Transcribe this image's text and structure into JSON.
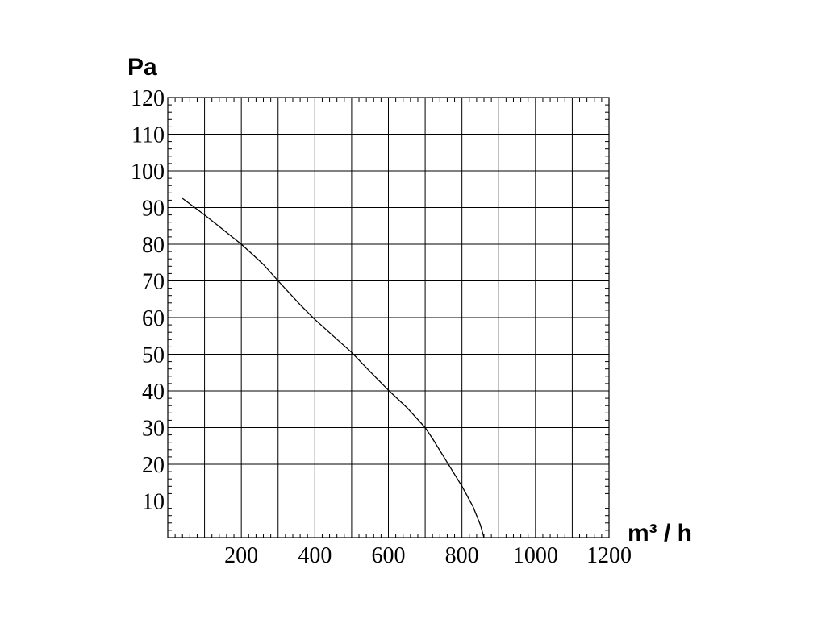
{
  "chart_data": {
    "type": "line",
    "title": "",
    "ylabel": "Pa",
    "xlabel": "m³ / h",
    "xlim": [
      0,
      1200
    ],
    "ylim": [
      0,
      120
    ],
    "grid": true,
    "x_ticks": [
      200,
      400,
      600,
      800,
      1000,
      1200
    ],
    "x_tick_labels": [
      "200",
      "400",
      "600",
      "800",
      "1000",
      "1200"
    ],
    "y_ticks": [
      10,
      20,
      30,
      40,
      50,
      60,
      70,
      80,
      90,
      100,
      110,
      120
    ],
    "y_tick_labels": [
      "10",
      "20",
      "30",
      "40",
      "50",
      "60",
      "70",
      "80",
      "90",
      "100",
      "110",
      "120"
    ],
    "series": [
      {
        "x": [
          40,
          100,
          200,
          260,
          300,
          360,
          400,
          450,
          500,
          550,
          600,
          650,
          700,
          720,
          760,
          800,
          830,
          850,
          860
        ],
        "y": [
          92.5,
          88,
          80,
          74.5,
          70,
          63.5,
          59.5,
          55,
          50.5,
          45.3,
          40.2,
          35.5,
          30,
          27,
          20.5,
          14,
          8.5,
          3.5,
          0
        ]
      }
    ],
    "colors": {
      "line": "#000000",
      "grid": "#000000",
      "background": "#ffffff"
    }
  }
}
